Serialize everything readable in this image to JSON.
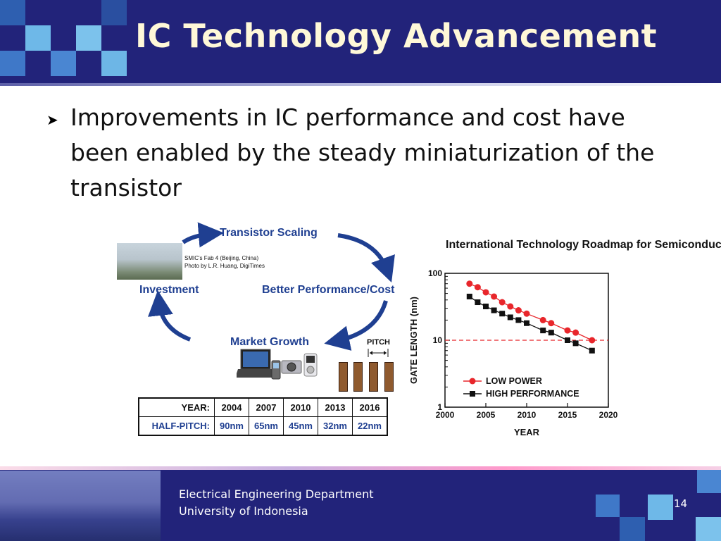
{
  "slide": {
    "title": "IC Technology Advancement",
    "bullet": "Improvements in IC performance and cost have been enabled by the steady miniaturization of the transistor"
  },
  "diagram": {
    "transistor_scaling": "Transistor Scaling",
    "better_performance": "Better Performance/Cost",
    "market_growth": "Market Growth",
    "investment": "Investment",
    "fab_caption_line1": "SMIC's Fab 4 (Beijing, China)",
    "fab_caption_line2": "Photo by L.R. Huang, DigiTimes",
    "pitch_label": "PITCH"
  },
  "pitch_table": {
    "year_header": "YEAR:",
    "halfpitch_header": "HALF-PITCH:",
    "years": [
      "2004",
      "2007",
      "2010",
      "2013",
      "2016"
    ],
    "half_pitches": [
      "90nm",
      "65nm",
      "45nm",
      "32nm",
      "22nm"
    ]
  },
  "chart_data": {
    "type": "scatter",
    "title": "International Technology Roadmap for Semiconductors",
    "xlabel": "YEAR",
    "ylabel": "GATE LENGTH (nm)",
    "x_ticks": [
      "2000",
      "2005",
      "2010",
      "2015",
      "2020"
    ],
    "y_ticks": [
      "1",
      "10",
      "100"
    ],
    "xlim": [
      2000,
      2020
    ],
    "ylim": [
      1,
      100
    ],
    "y_scale": "log",
    "reference_line": 10,
    "series": [
      {
        "name": "LOW POWER",
        "color": "#e8262b",
        "marker": "circle",
        "x": [
          2003,
          2004,
          2005,
          2006,
          2007,
          2008,
          2009,
          2010,
          2012,
          2013,
          2015,
          2016,
          2018
        ],
        "y": [
          70,
          62,
          52,
          45,
          37,
          32,
          28,
          25,
          20,
          18,
          14,
          13,
          10
        ]
      },
      {
        "name": "HIGH PERFORMANCE",
        "color": "#111111",
        "marker": "square",
        "x": [
          2003,
          2004,
          2005,
          2006,
          2007,
          2008,
          2009,
          2010,
          2012,
          2013,
          2015,
          2016,
          2018
        ],
        "y": [
          45,
          37,
          32,
          28,
          25,
          22,
          20,
          18,
          14,
          13,
          10,
          9,
          7
        ]
      }
    ]
  },
  "footer": {
    "dept_line1": "Electrical Engineering Department",
    "dept_line2": "University of Indonesia",
    "page_number": "14"
  },
  "colors": {
    "header_bg": "#22237a",
    "title_color": "#fff8d8",
    "diagram_text": "#1f3f91",
    "arrow_color": "#1f3f91"
  }
}
